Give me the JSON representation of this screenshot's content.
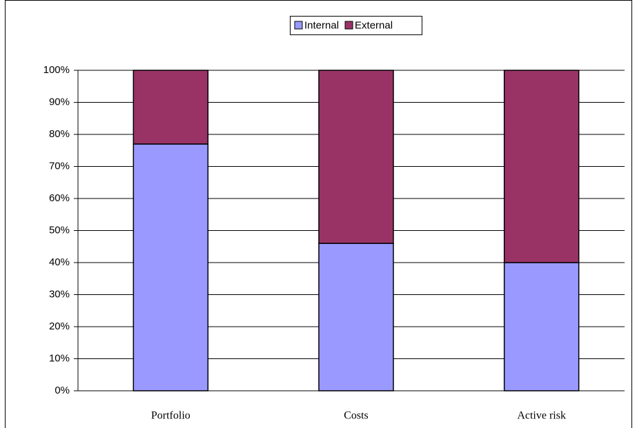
{
  "chart_data": {
    "type": "bar",
    "stacked": true,
    "categories": [
      "Portfolio",
      "Costs",
      "Active risk"
    ],
    "series": [
      {
        "name": "Internal",
        "color": "#9999ff",
        "values": [
          77,
          46,
          40
        ]
      },
      {
        "name": "External",
        "color": "#993366",
        "values": [
          23,
          54,
          60
        ]
      }
    ],
    "ylim": [
      0,
      100
    ],
    "yticks": [
      {
        "value": 0,
        "label": "0%"
      },
      {
        "value": 10,
        "label": "10%"
      },
      {
        "value": 20,
        "label": "20%"
      },
      {
        "value": 30,
        "label": "30%"
      },
      {
        "value": 40,
        "label": "40%"
      },
      {
        "value": 50,
        "label": "50%"
      },
      {
        "value": 60,
        "label": "60%"
      },
      {
        "value": 70,
        "label": "70%"
      },
      {
        "value": 80,
        "label": "80%"
      },
      {
        "value": 90,
        "label": "90%"
      },
      {
        "value": 100,
        "label": "100%"
      }
    ],
    "grid": true,
    "legend": "top"
  }
}
